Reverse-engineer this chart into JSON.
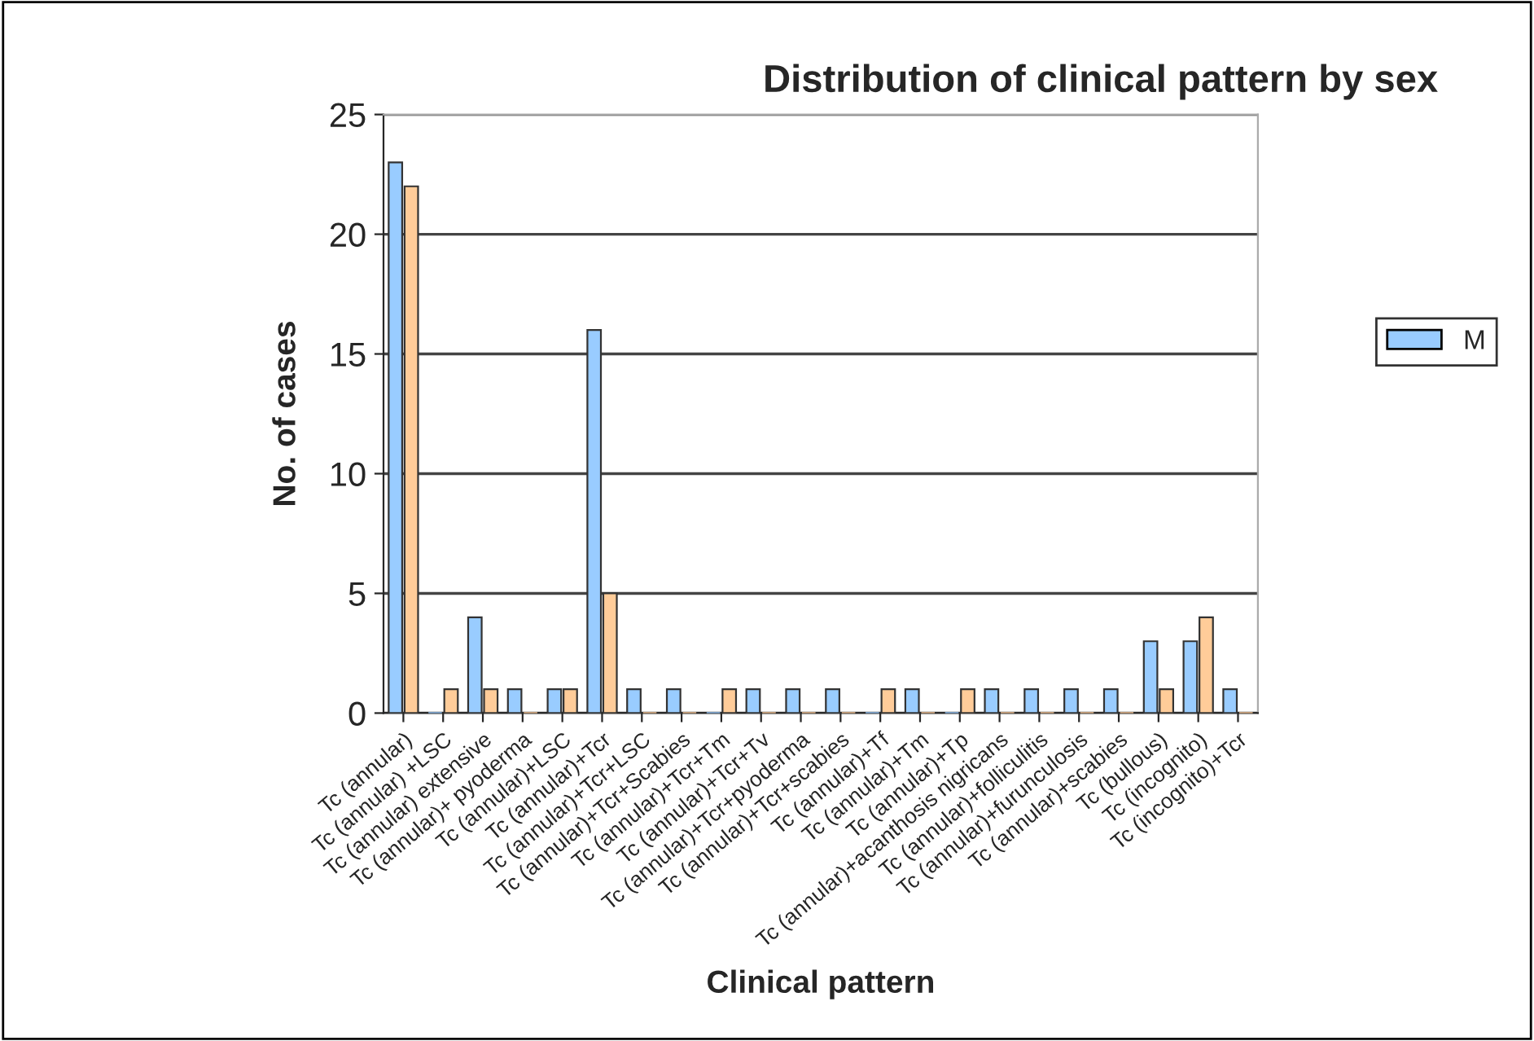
{
  "chart_data": {
    "type": "bar",
    "title": "Distribution of clinical pattern by sex",
    "xlabel": "Clinical pattern",
    "ylabel": "No. of cases",
    "categories": [
      "Tc (annular)",
      "Tc (annular) +LSC",
      "Tc (annular) extensive",
      "Tc (annular)+ pyoderma",
      "Tc (annular)+LSC",
      "Tc (annular)+Tcr",
      "Tc (annular)+Tcr+LSC",
      "Tc (annular)+Tcr+Scabies",
      "Tc (annular)+Tcr+Tm",
      "Tc (annular)+Tcr+Tv",
      "Tc (annular)+Tcr+pyoderma",
      "Tc (annular)+Tcr+scabies",
      "Tc (annular)+Tf",
      "Tc (annular)+Tm",
      "Tc (annular)+Tp",
      "Tc (annular)+acanthosis nigricans",
      "Tc (annular)+folliculitis",
      "Tc (annular)+furunculosis",
      "Tc (annular)+scabies",
      "Tc (bullous)",
      "Tc (incognito)",
      "Tc (incognito)+Tcr"
    ],
    "series": [
      {
        "name": "M",
        "color": "#99ccff",
        "values": [
          23,
          0,
          4,
          1,
          1,
          16,
          1,
          1,
          0,
          1,
          1,
          1,
          0,
          1,
          0,
          1,
          1,
          1,
          1,
          3,
          3,
          1
        ]
      },
      {
        "color": "#ffcc99",
        "values": [
          22,
          1,
          1,
          0,
          1,
          5,
          0,
          0,
          1,
          0,
          0,
          0,
          1,
          0,
          1,
          0,
          0,
          0,
          0,
          1,
          4,
          0
        ]
      }
    ],
    "ylim": [
      0,
      25
    ],
    "yticks": [
      0,
      5,
      10,
      15,
      20,
      25
    ],
    "grid": "y",
    "legend": "right"
  }
}
